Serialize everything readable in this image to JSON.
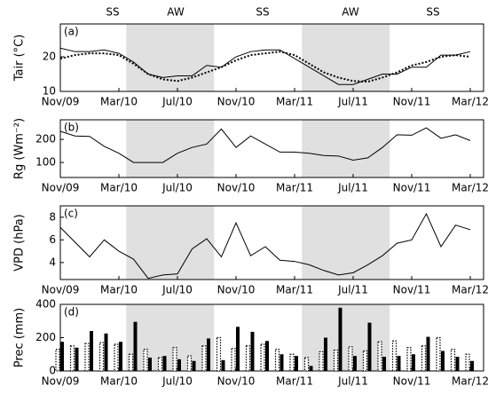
{
  "seasons": [
    "SS",
    "AW",
    "SS",
    "AW",
    "SS"
  ],
  "chart_data": [
    {
      "type": "line",
      "panel": "(a)",
      "ylabel": "Tair (°C)",
      "categories": [
        "Nov/09",
        null,
        null,
        null,
        "Mar/10",
        null,
        null,
        null,
        "Jul/10",
        null,
        null,
        null,
        "Nov/10",
        null,
        null,
        null,
        "Mar/11",
        null,
        null,
        null,
        "Jul/11",
        null,
        null,
        null,
        "Nov/11",
        null,
        null,
        null,
        "Mar/12"
      ],
      "shade": [
        [
          5,
          11
        ],
        [
          17,
          23
        ]
      ],
      "ylim": [
        10,
        29.5
      ],
      "yticks": [
        10,
        20
      ],
      "series": [
        {
          "color": "#000000",
          "style": "solid",
          "values": [
            22.5,
            21.5,
            21.5,
            22,
            21,
            18.5,
            15,
            14,
            14.5,
            14.5,
            17.5,
            17,
            20,
            21.5,
            22,
            22,
            19.5,
            17,
            14.5,
            12,
            12,
            13.5,
            15,
            15,
            17,
            17,
            20.5,
            20.5,
            21.5
          ]
        },
        {
          "color": "#000000",
          "style": "dotted",
          "values": [
            19.5,
            20.5,
            21,
            21,
            20.5,
            18,
            15,
            13.5,
            13,
            14,
            15.5,
            17,
            19,
            20.5,
            21,
            21.5,
            20.5,
            18,
            15.5,
            14,
            13,
            12.8,
            14,
            15.5,
            17.5,
            18.5,
            20,
            20.5,
            20
          ]
        }
      ]
    },
    {
      "type": "line",
      "panel": "(b)",
      "ylabel": "Rg (Wm⁻²)",
      "categories": [
        "Nov/09",
        null,
        null,
        null,
        "Mar/10",
        null,
        null,
        null,
        "Jul/10",
        null,
        null,
        null,
        "Nov/10",
        null,
        null,
        null,
        "Mar/11",
        null,
        null,
        null,
        "Jul/11",
        null,
        null,
        null,
        "Nov/11",
        null,
        null,
        null,
        "Mar/12"
      ],
      "shade": [
        [
          5,
          11
        ],
        [
          17,
          23
        ]
      ],
      "ylim": [
        35,
        285
      ],
      "yticks": [
        100,
        200
      ],
      "series": [
        {
          "color": "#000000",
          "style": "solid",
          "values": [
            235,
            215,
            213,
            170,
            140,
            100,
            100,
            100,
            140,
            165,
            180,
            245,
            165,
            215,
            180,
            145,
            145,
            140,
            130,
            128,
            110,
            120,
            165,
            220,
            218,
            250,
            205,
            220,
            195
          ]
        }
      ]
    },
    {
      "type": "line",
      "panel": "(c)",
      "ylabel": "VPD (hPa)",
      "categories": [
        "Nov/09",
        null,
        null,
        null,
        "Mar/10",
        null,
        null,
        null,
        "Jul/10",
        null,
        null,
        null,
        "Nov/10",
        null,
        null,
        null,
        "Mar/11",
        null,
        null,
        null,
        "Jul/11",
        null,
        null,
        null,
        "Nov/11",
        null,
        null,
        null,
        "Mar/12"
      ],
      "shade": [
        [
          5,
          11
        ],
        [
          17,
          23
        ]
      ],
      "ylim": [
        2.5,
        9
      ],
      "yticks": [
        4,
        6,
        8
      ],
      "series": [
        {
          "color": "#000000",
          "style": "solid",
          "values": [
            7.1,
            5.8,
            4.5,
            6.0,
            5.0,
            4.3,
            2.6,
            2.9,
            3.0,
            5.2,
            6.1,
            4.5,
            7.5,
            4.6,
            5.4,
            4.2,
            4.1,
            3.8,
            3.3,
            2.9,
            3.1,
            3.8,
            4.6,
            5.7,
            6.0,
            8.3,
            5.4,
            7.3,
            6.9
          ]
        }
      ]
    },
    {
      "type": "bar",
      "panel": "(d)",
      "ylabel": "Prec (mm)",
      "categories": [
        "Nov/09",
        null,
        null,
        null,
        "Mar/10",
        null,
        null,
        null,
        "Jul/10",
        null,
        null,
        null,
        "Nov/10",
        null,
        null,
        null,
        "Mar/11",
        null,
        null,
        null,
        "Jul/11",
        null,
        null,
        null,
        "Nov/11",
        null,
        null,
        null,
        "Mar/12"
      ],
      "shade": [
        [
          5,
          11
        ],
        [
          17,
          23
        ]
      ],
      "ylim": [
        0,
        400
      ],
      "yticks": [
        0,
        200,
        400
      ],
      "series": [
        {
          "color": "#000000",
          "style": "dotted",
          "values": [
            130,
            150,
            165,
            170,
            160,
            100,
            130,
            80,
            140,
            90,
            150,
            200,
            135,
            150,
            160,
            130,
            100,
            80,
            115,
            125,
            145,
            120,
            175,
            180,
            140,
            150,
            200,
            130,
            100
          ]
        },
        {
          "color": "#000000",
          "style": "solid",
          "values": [
            175,
            140,
            240,
            225,
            175,
            295,
            80,
            90,
            70,
            60,
            195,
            65,
            265,
            235,
            180,
            100,
            90,
            30,
            200,
            380,
            90,
            290,
            85,
            90,
            100,
            205,
            120,
            85,
            60
          ]
        }
      ]
    }
  ]
}
